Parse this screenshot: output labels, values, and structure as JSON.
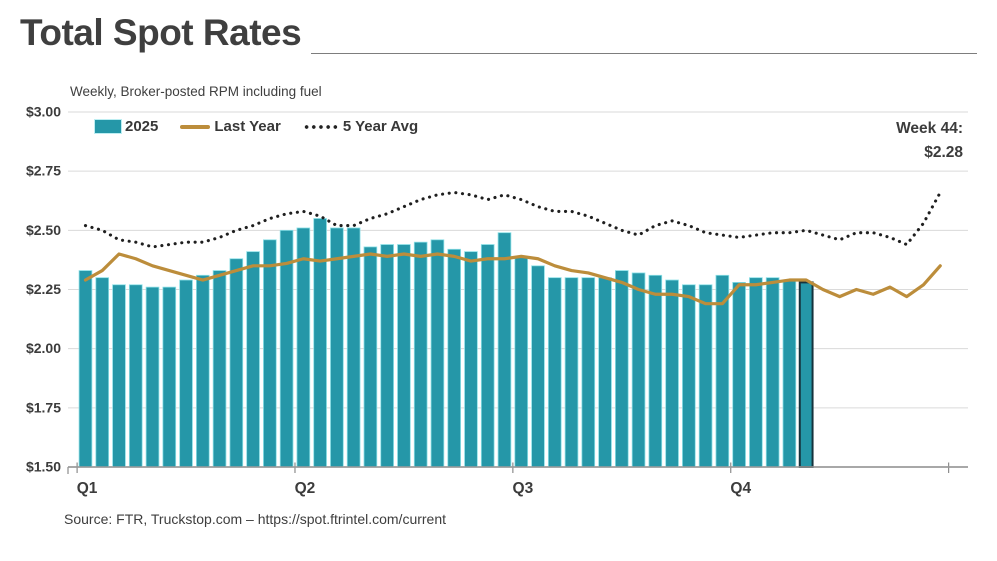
{
  "source": "Source: FTR, Truckstop.com – https://spot.ftrintel.com/current",
  "chart_data": {
    "type": "bar",
    "title": "Total Spot Rates",
    "subtitle": "Weekly, Broker-posted RPM including fuel",
    "unit": "USD per mile (RPM including fuel)",
    "callout": {
      "label": "Week 44:",
      "value_label": "$2.28",
      "week": 44,
      "value": 2.28
    },
    "x_axis": {
      "weeks": 52,
      "quarter_labels": [
        "Q1",
        "Q2",
        "Q3",
        "Q4"
      ],
      "quarter_boundaries": [
        0,
        13,
        26,
        39,
        52
      ]
    },
    "y_axis": {
      "min": 1.5,
      "max": 3.0,
      "step": 0.25,
      "gridline_color": "#dadada",
      "axis_color": "#9c9c9c",
      "ticks": [
        {
          "value": 3.0,
          "label": "$3.00"
        },
        {
          "value": 2.75,
          "label": "$2.75"
        },
        {
          "value": 2.5,
          "label": "$2.50"
        },
        {
          "value": 2.25,
          "label": "$2.25"
        },
        {
          "value": 2.0,
          "label": "$2.00"
        },
        {
          "value": 1.75,
          "label": "$1.75"
        },
        {
          "value": 1.5,
          "label": "$1.50"
        }
      ]
    },
    "legend_position": "top-left",
    "series": [
      {
        "name": "2025",
        "type": "bar",
        "color": "#2597a8",
        "edge_color": "#8ce0e7",
        "highlight_last": true,
        "highlight_color": "#16333d",
        "values": [
          2.33,
          2.3,
          2.27,
          2.27,
          2.26,
          2.26,
          2.29,
          2.31,
          2.33,
          2.38,
          2.41,
          2.46,
          2.5,
          2.51,
          2.55,
          2.51,
          2.51,
          2.43,
          2.44,
          2.44,
          2.45,
          2.46,
          2.42,
          2.41,
          2.44,
          2.49,
          2.39,
          2.35,
          2.3,
          2.3,
          2.3,
          2.3,
          2.33,
          2.32,
          2.31,
          2.29,
          2.27,
          2.27,
          2.31,
          2.28,
          2.3,
          2.3,
          2.29,
          2.28
        ]
      },
      {
        "name": "Last Year",
        "type": "line",
        "color": "#bc8d3b",
        "values": [
          2.29,
          2.33,
          2.4,
          2.38,
          2.35,
          2.33,
          2.31,
          2.29,
          2.31,
          2.33,
          2.35,
          2.35,
          2.36,
          2.38,
          2.37,
          2.38,
          2.39,
          2.4,
          2.39,
          2.4,
          2.39,
          2.4,
          2.39,
          2.37,
          2.38,
          2.38,
          2.39,
          2.38,
          2.35,
          2.33,
          2.32,
          2.3,
          2.28,
          2.25,
          2.23,
          2.23,
          2.22,
          2.19,
          2.19,
          2.27,
          2.27,
          2.28,
          2.29,
          2.29,
          2.25,
          2.22,
          2.25,
          2.23,
          2.26,
          2.22,
          2.27,
          2.35
        ]
      },
      {
        "name": "5 Year Avg",
        "type": "dotted",
        "color": "#1f1f1f",
        "values": [
          2.52,
          2.5,
          2.46,
          2.45,
          2.43,
          2.44,
          2.45,
          2.45,
          2.47,
          2.5,
          2.52,
          2.55,
          2.57,
          2.58,
          2.56,
          2.52,
          2.52,
          2.55,
          2.57,
          2.6,
          2.63,
          2.65,
          2.66,
          2.65,
          2.63,
          2.65,
          2.63,
          2.6,
          2.58,
          2.58,
          2.56,
          2.53,
          2.5,
          2.48,
          2.52,
          2.54,
          2.52,
          2.49,
          2.48,
          2.47,
          2.48,
          2.49,
          2.49,
          2.5,
          2.48,
          2.46,
          2.49,
          2.49,
          2.47,
          2.44,
          2.53,
          2.66
        ]
      }
    ]
  }
}
